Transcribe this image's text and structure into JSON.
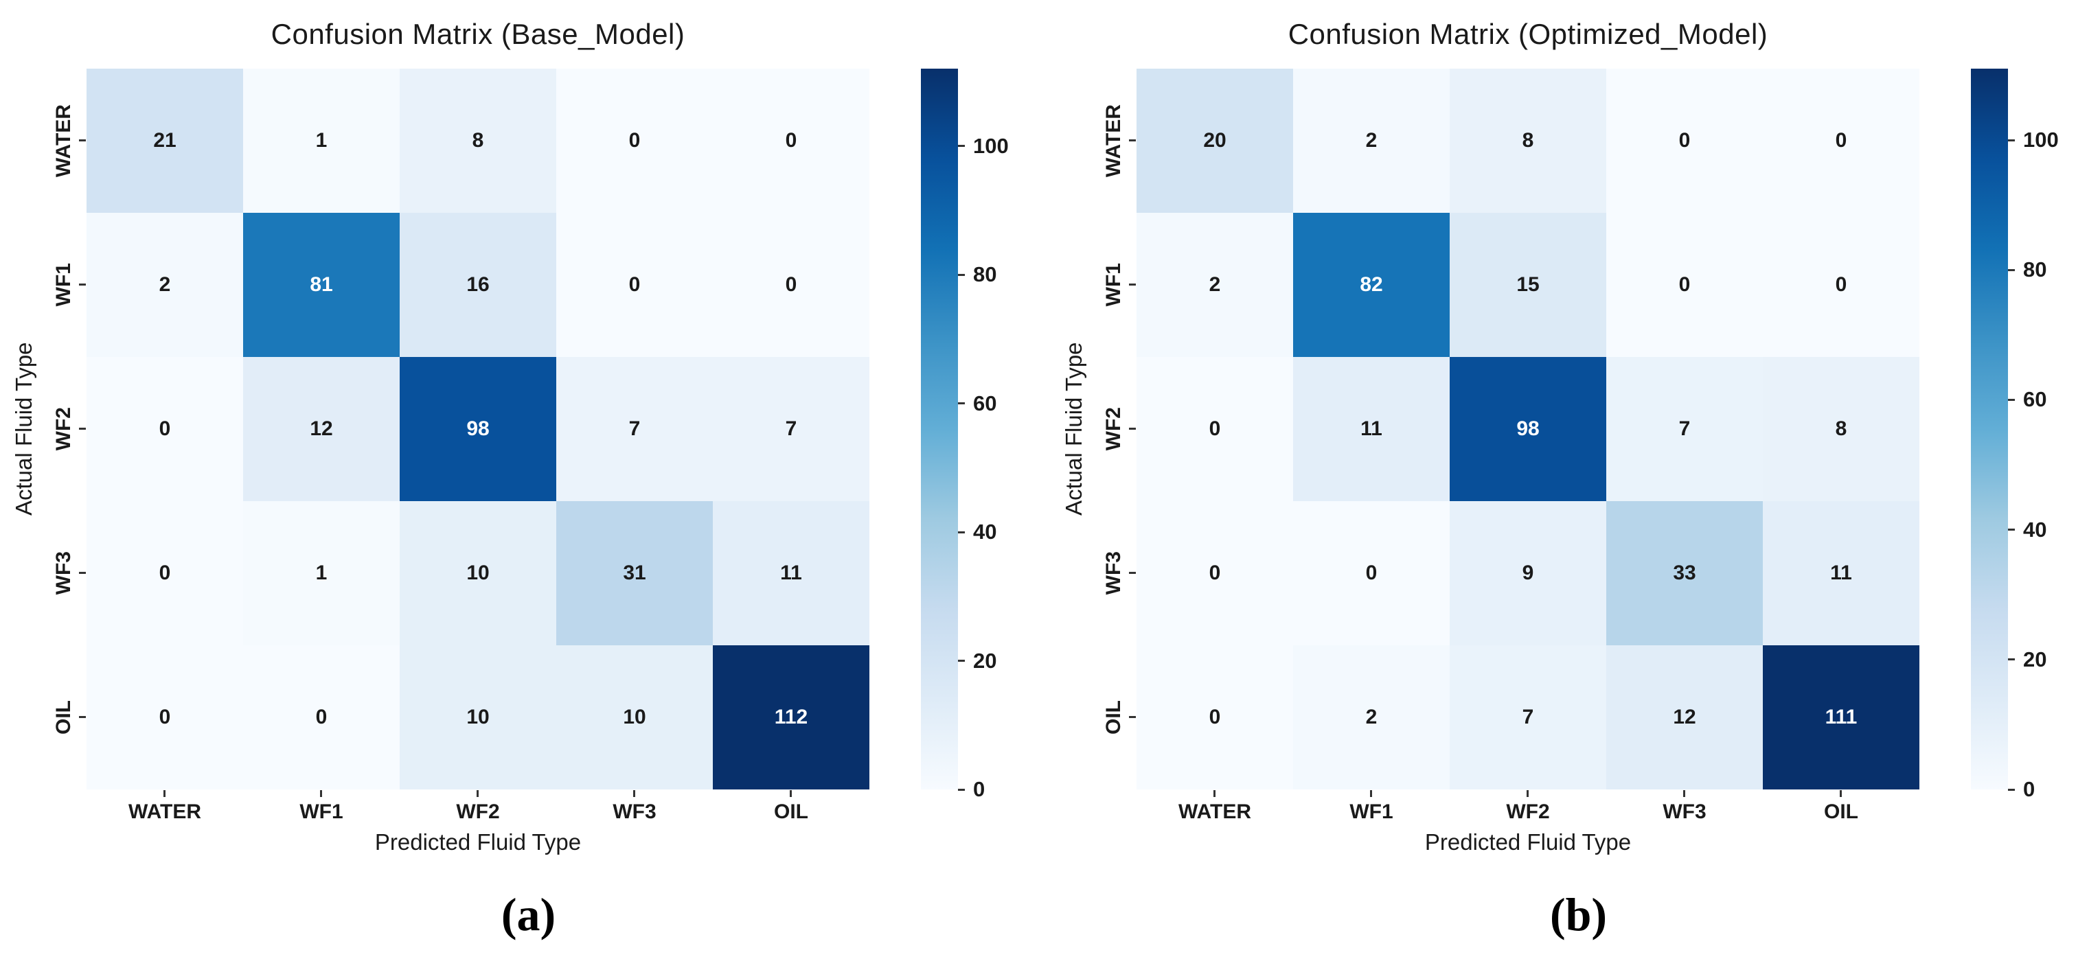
{
  "colors": {
    "background": "#ffffff",
    "text": "#1a1a1a",
    "tick_mark": "#333333",
    "value_text_dark": "#1a1a1a",
    "value_text_light": "#ffffff",
    "blues_anchors": [
      "#f7fbff",
      "#deebf7",
      "#c6dbef",
      "#9ecae1",
      "#62aed6",
      "#3b92c6",
      "#1271b5",
      "#08519c",
      "#08306b"
    ]
  },
  "chart_data": [
    {
      "type": "heatmap",
      "colormap": "Blues",
      "title": "Confusion Matrix (Base_Model)",
      "xlabel": "Predicted Fluid Type",
      "ylabel": "Actual Fluid Type",
      "x_categories": [
        "WATER",
        "WF1",
        "WF2",
        "WF3",
        "OIL"
      ],
      "y_categories": [
        "WATER",
        "WF1",
        "WF2",
        "WF3",
        "OIL"
      ],
      "values": [
        [
          21,
          1,
          8,
          0,
          0
        ],
        [
          2,
          81,
          16,
          0,
          0
        ],
        [
          0,
          12,
          98,
          7,
          7
        ],
        [
          0,
          1,
          10,
          31,
          11
        ],
        [
          0,
          0,
          10,
          10,
          112
        ]
      ],
      "vmin": 0,
      "vmax": 112,
      "colorbar_ticks": [
        0,
        20,
        40,
        60,
        80,
        100
      ],
      "legend_position": "right",
      "caption": "(a)"
    },
    {
      "type": "heatmap",
      "colormap": "Blues",
      "title": "Confusion Matrix (Optimized_Model)",
      "xlabel": "Predicted Fluid Type",
      "ylabel": "Actual Fluid Type",
      "x_categories": [
        "WATER",
        "WF1",
        "WF2",
        "WF3",
        "OIL"
      ],
      "y_categories": [
        "WATER",
        "WF1",
        "WF2",
        "WF3",
        "OIL"
      ],
      "values": [
        [
          20,
          2,
          8,
          0,
          0
        ],
        [
          2,
          82,
          15,
          0,
          0
        ],
        [
          0,
          11,
          98,
          7,
          8
        ],
        [
          0,
          0,
          9,
          33,
          11
        ],
        [
          0,
          2,
          7,
          12,
          111
        ]
      ],
      "vmin": 0,
      "vmax": 111,
      "colorbar_ticks": [
        0,
        20,
        40,
        60,
        80,
        100
      ],
      "legend_position": "right",
      "caption": "(b)"
    }
  ]
}
